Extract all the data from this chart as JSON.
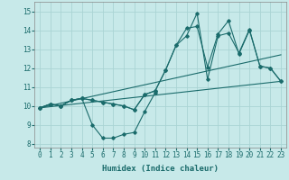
{
  "xlabel": "Humidex (Indice chaleur)",
  "ylabel": "",
  "xlim": [
    -0.5,
    23.5
  ],
  "ylim": [
    7.8,
    15.5
  ],
  "yticks": [
    8,
    9,
    10,
    11,
    12,
    13,
    14,
    15
  ],
  "xticks": [
    0,
    1,
    2,
    3,
    4,
    5,
    6,
    7,
    8,
    9,
    10,
    11,
    12,
    13,
    14,
    15,
    16,
    17,
    18,
    19,
    20,
    21,
    22,
    23
  ],
  "background_color": "#c7e9e9",
  "grid_color": "#aad4d4",
  "line_color": "#1a6b6b",
  "lines": [
    {
      "x": [
        0,
        1,
        2,
        3,
        4,
        5,
        6,
        7,
        8,
        9,
        10,
        11
      ],
      "y": [
        9.9,
        10.1,
        10.0,
        10.3,
        10.4,
        9.0,
        8.3,
        8.3,
        8.5,
        8.6,
        9.7,
        10.7
      ]
    },
    {
      "x": [
        0,
        1,
        2,
        3,
        4,
        5,
        6,
        7,
        8,
        9,
        10,
        11,
        12,
        13,
        14,
        15,
        16,
        17,
        18,
        19,
        20,
        21,
        22,
        23
      ],
      "y": [
        9.9,
        10.1,
        10.0,
        10.3,
        10.4,
        10.3,
        10.2,
        10.1,
        10.0,
        9.8,
        10.6,
        10.8,
        11.9,
        13.2,
        13.7,
        14.9,
        11.4,
        13.7,
        13.85,
        12.8,
        14.05,
        12.1,
        12.0,
        11.3
      ]
    },
    {
      "x": [
        0,
        1,
        2,
        3,
        4,
        5,
        6,
        7,
        8,
        9,
        10,
        11,
        12,
        13,
        14,
        15,
        16,
        17,
        18,
        19,
        20,
        21,
        22,
        23
      ],
      "y": [
        9.9,
        10.1,
        10.0,
        10.3,
        10.4,
        10.3,
        10.2,
        10.1,
        10.0,
        9.8,
        10.6,
        10.8,
        11.9,
        13.2,
        14.1,
        14.2,
        12.05,
        13.8,
        14.5,
        12.75,
        14.0,
        12.1,
        12.0,
        11.3
      ]
    },
    {
      "x": [
        0,
        23
      ],
      "y": [
        9.9,
        11.3
      ]
    },
    {
      "x": [
        0,
        23
      ],
      "y": [
        9.9,
        12.7
      ]
    }
  ]
}
